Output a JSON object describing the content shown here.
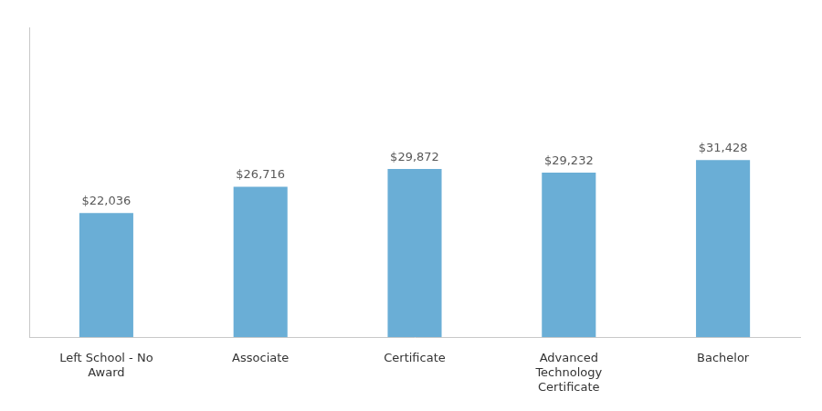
{
  "chart_data": {
    "type": "bar",
    "categories": [
      "Left School - No\nAward",
      "Associate",
      "Certificate",
      "Advanced\nTechnology\nCertificate",
      "Bachelor"
    ],
    "values": [
      22036,
      26716,
      29872,
      29232,
      31428
    ],
    "value_labels": [
      "$22,036",
      "$26,716",
      "$29,872",
      "$29,232",
      "$31,428"
    ],
    "data_labels": true,
    "color": "#6aaed6",
    "ylim": [
      0,
      55000
    ],
    "grid": false,
    "tick_labels": "x"
  }
}
